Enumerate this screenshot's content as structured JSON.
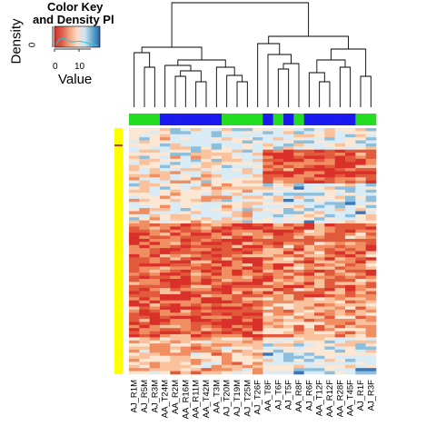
{
  "color_key": {
    "title_line1": "Color Key",
    "title_line2": "and Density Pl",
    "ylabel": "Density",
    "xlabel": "Value",
    "xticks": [
      "0",
      "10"
    ],
    "yticks": [
      "0"
    ],
    "colors": [
      "#2166ac",
      "#67a9cf",
      "#d1e5f0",
      "#fddbc7",
      "#f4a582",
      "#d6604d",
      "#e0302a"
    ]
  },
  "chart_data": {
    "type": "heatmap",
    "title": "",
    "value_range": [
      0,
      15
    ],
    "columns": [
      "AJ_R1M",
      "AJ_R5M",
      "AJ_R3M",
      "AA_T24M",
      "AA_R2M",
      "AA_R16M",
      "AA_R11M",
      "AA_T42M",
      "AA_T3M",
      "AJ_T20M",
      "AJ_T19M",
      "AJ_T25M",
      "AJ_T26F",
      "AA_T8F",
      "AJ_T6F",
      "AJ_T5F",
      "AA_R8F",
      "AJ_R6F",
      "AA_T12F",
      "AA_R12F",
      "AA_R28F",
      "AA_T45F",
      "AJ_R1F",
      "AJ_R3F"
    ],
    "column_groups": [
      "green",
      "green",
      "green",
      "blue",
      "blue",
      "blue",
      "blue",
      "blue",
      "blue",
      "green",
      "green",
      "green",
      "green",
      "blue",
      "green",
      "blue",
      "green",
      "blue",
      "blue",
      "blue",
      "blue",
      "blue",
      "green",
      "green"
    ],
    "group_colors": {
      "green": "#22dd22",
      "blue": "#1a1aee"
    },
    "row_side_color": "#ffff00",
    "row_marker_color": "#c0392b",
    "n_rows": 80
  }
}
